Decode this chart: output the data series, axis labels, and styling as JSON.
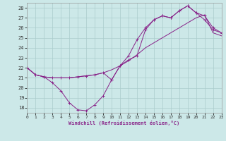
{
  "xlabel": "Windchill (Refroidissement éolien,°C)",
  "xlim": [
    0,
    23
  ],
  "ylim": [
    17.5,
    28.5
  ],
  "yticks": [
    18,
    19,
    20,
    21,
    22,
    23,
    24,
    25,
    26,
    27,
    28
  ],
  "xticks": [
    0,
    1,
    2,
    3,
    4,
    5,
    6,
    7,
    8,
    9,
    10,
    11,
    12,
    13,
    14,
    15,
    16,
    17,
    18,
    19,
    20,
    21,
    22,
    23
  ],
  "background_color": "#cce8e8",
  "grid_color": "#aacccc",
  "line_color": "#882288",
  "line1_x": [
    0,
    1,
    2,
    3,
    4,
    5,
    6,
    7,
    8,
    9,
    10,
    11,
    12,
    13,
    14,
    15,
    16,
    17,
    18,
    19,
    20,
    21,
    22,
    23
  ],
  "line1_y": [
    22.0,
    21.3,
    21.1,
    20.5,
    19.7,
    18.5,
    17.8,
    17.7,
    18.3,
    19.2,
    20.8,
    22.2,
    23.2,
    24.8,
    26.0,
    26.8,
    27.2,
    27.0,
    27.7,
    28.2,
    27.5,
    27.2,
    26.0,
    25.5
  ],
  "line2_x": [
    0,
    1,
    2,
    3,
    4,
    5,
    6,
    7,
    8,
    9,
    10,
    11,
    12,
    13,
    14,
    15,
    16,
    17,
    18,
    19,
    20,
    21,
    22,
    23
  ],
  "line2_y": [
    22.0,
    21.3,
    21.1,
    21.0,
    21.0,
    21.0,
    21.1,
    21.2,
    21.3,
    21.5,
    21.8,
    22.2,
    22.7,
    23.3,
    24.0,
    24.5,
    25.0,
    25.5,
    26.0,
    26.5,
    27.0,
    27.3,
    25.5,
    25.2
  ],
  "line3_x": [
    0,
    1,
    2,
    3,
    4,
    5,
    6,
    7,
    8,
    9,
    10,
    11,
    12,
    13,
    14,
    15,
    16,
    17,
    18,
    19,
    20,
    21,
    22,
    23
  ],
  "line3_y": [
    22.0,
    21.3,
    21.1,
    21.0,
    21.0,
    21.0,
    21.1,
    21.2,
    21.3,
    21.5,
    20.8,
    22.2,
    22.8,
    23.2,
    25.8,
    26.8,
    27.2,
    27.0,
    27.7,
    28.2,
    27.5,
    26.8,
    25.8,
    25.5
  ]
}
